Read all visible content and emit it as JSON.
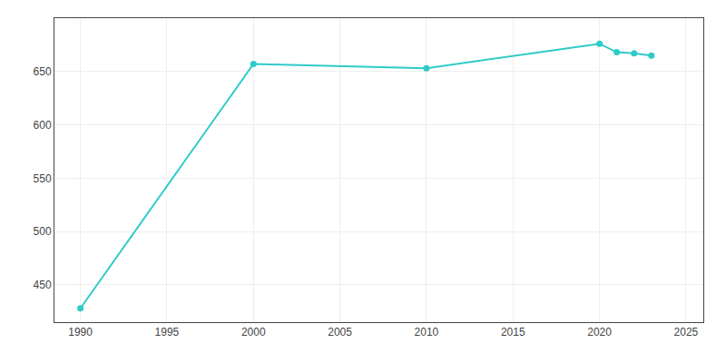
{
  "chart_data": {
    "type": "line",
    "x": [
      1990,
      2000,
      2010,
      2020,
      2021,
      2022,
      2023
    ],
    "values": [
      428,
      657,
      653,
      676,
      668,
      667,
      665
    ],
    "color": "#2ECBC8",
    "marker": "circle",
    "xlim": [
      1988.5,
      2026
    ],
    "ylim": [
      415,
      700
    ],
    "xticks": [
      1990,
      1995,
      2000,
      2005,
      2010,
      2015,
      2020,
      2025
    ],
    "yticks": [
      450,
      500,
      550,
      600,
      650
    ],
    "grid": true
  }
}
